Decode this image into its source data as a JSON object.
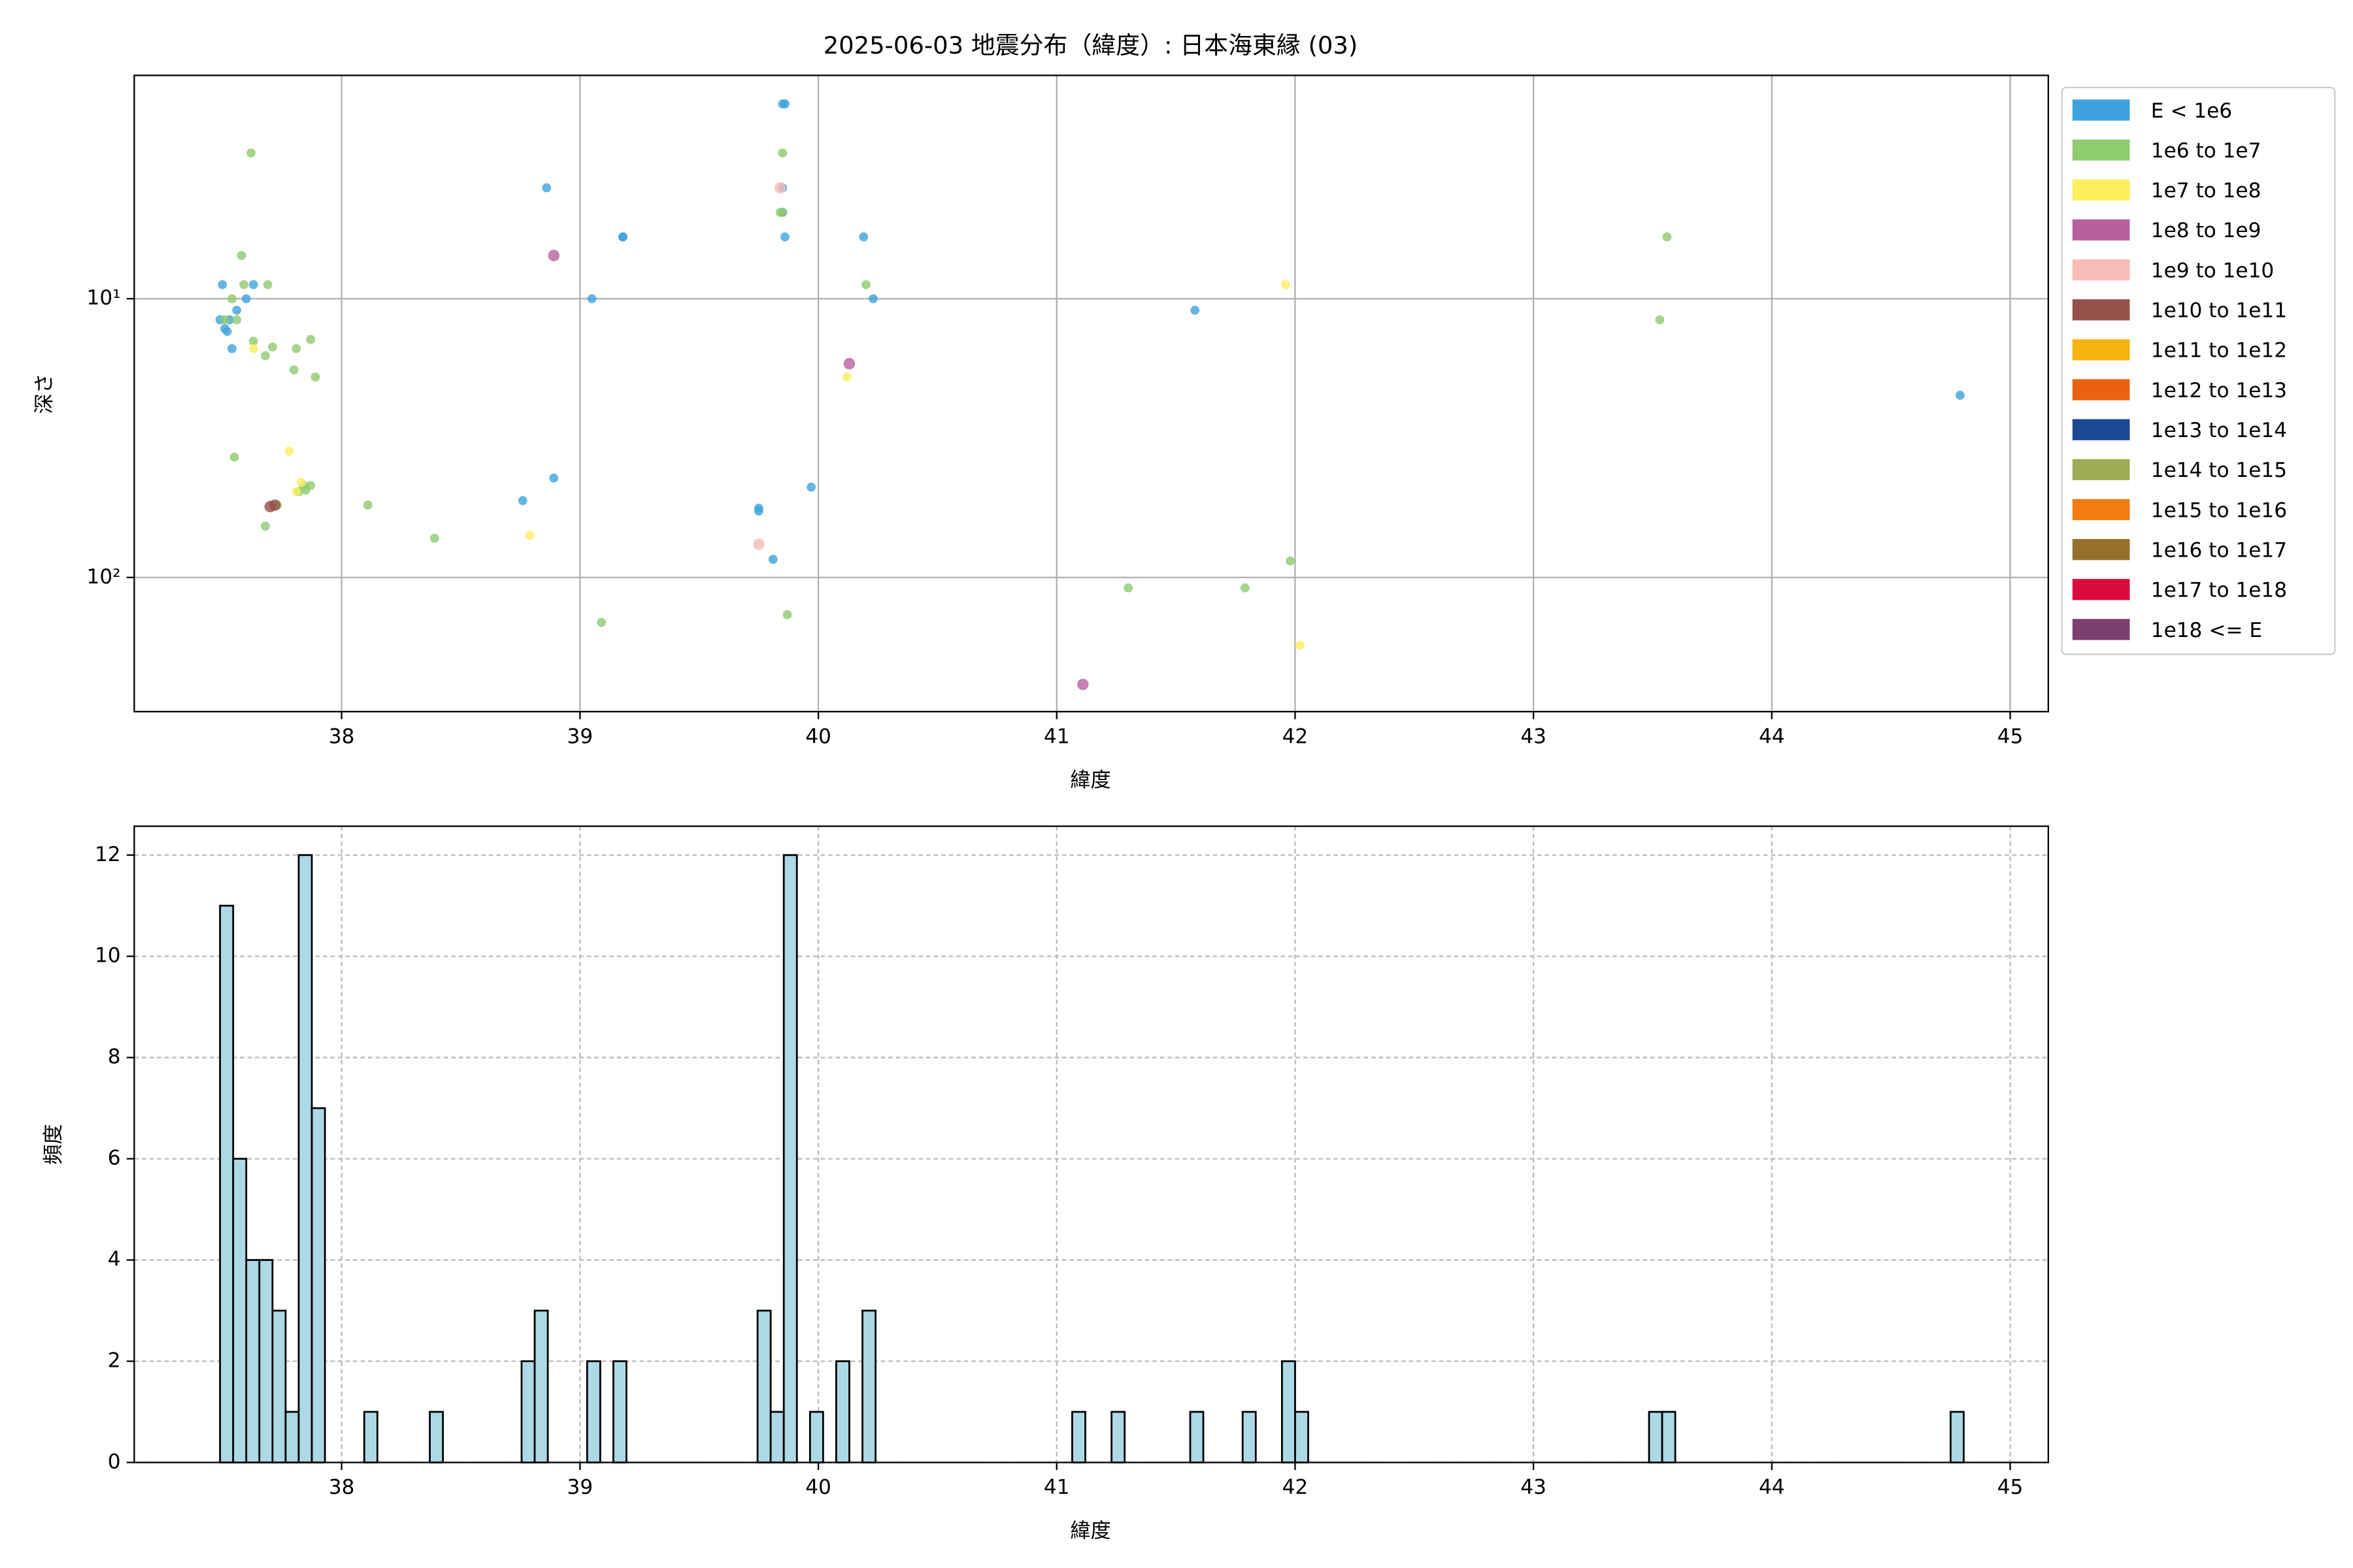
{
  "chart_data": [
    {
      "type": "scatter",
      "title": "2025-06-03 地震分布（緯度）: 日本海東縁 (03)",
      "x_label": "緯度",
      "y_label": "深さ",
      "xlim": [
        37.13,
        45.16
      ],
      "ylim": [
        1.58,
        303
      ],
      "y_inverted": true,
      "yscale": "log",
      "grid": true,
      "legend": "outside-right",
      "xticks": [
        38,
        39,
        40,
        41,
        42,
        43,
        44,
        45
      ],
      "yticks": [
        {
          "value": 10,
          "label": "10¹"
        },
        {
          "value": 100,
          "label": "10²"
        }
      ],
      "series": [
        {
          "name": "E < 1e6",
          "color": "#3ea3dc",
          "x": [
            37.5,
            37.49,
            37.51,
            37.53,
            37.56,
            37.6,
            37.63,
            37.52,
            37.54,
            38.86,
            39.05,
            39.18,
            39.18,
            39.85,
            39.86,
            39.85,
            39.85,
            39.86,
            38.76,
            38.89,
            39.75,
            39.75,
            39.81,
            39.97,
            40.19,
            40.23,
            41.58,
            44.79
          ],
          "values": [
            8.9,
            11.9,
            12.8,
            11.9,
            11.0,
            10,
            8.9,
            13.1,
            15.1,
            4.0,
            10,
            6.0,
            6.0,
            2.0,
            2.0,
            4.0,
            4.9,
            6.0,
            53.0,
            44.0,
            56.4,
            57.8,
            86.1,
            47.4,
            6.0,
            10,
            11.0,
            22.2
          ]
        },
        {
          "name": "1e6 to 1e7",
          "color": "#8fcb6f",
          "x": [
            37.62,
            37.58,
            37.59,
            37.69,
            37.54,
            37.51,
            37.56,
            37.63,
            37.71,
            37.68,
            37.87,
            37.81,
            37.8,
            37.89,
            37.55,
            37.68,
            38.11,
            38.39,
            39.85,
            39.84,
            39.85,
            40.2,
            43.56,
            43.53,
            39.09,
            39.87,
            41.3,
            41.79,
            41.98,
            37.84,
            37.85,
            37.87,
            37.82,
            37.73
          ],
          "values": [
            3.0,
            7.0,
            8.9,
            8.9,
            10,
            11.9,
            11.9,
            14.2,
            14.9,
            16.0,
            14.0,
            15.1,
            18.0,
            19.1,
            37.0,
            65.5,
            55.0,
            72.3,
            3.0,
            4.9,
            4.9,
            8.9,
            6.0,
            11.9,
            145,
            136,
            109,
            109,
            87.3,
            46.8,
            48.6,
            46.8,
            49.2,
            55.0
          ]
        },
        {
          "name": "1e7 to 1e8",
          "color": "#fdee5e",
          "x": [
            37.63,
            37.78,
            37.83,
            38.79,
            40.12,
            41.96,
            42.02,
            37.81
          ],
          "values": [
            15.1,
            35.2,
            45.6,
            70.6,
            19.1,
            8.9,
            175,
            49.2
          ]
        },
        {
          "name": "1e8 to 1e9",
          "color": "#b8609d",
          "x": [
            38.89,
            40.13,
            41.11
          ],
          "values": [
            7.0,
            17.1,
            242
          ]
        },
        {
          "name": "1e9 to 1e10",
          "color": "#f6bcb5",
          "x": [
            39.84,
            39.75
          ],
          "values": [
            4.0,
            76.0
          ]
        },
        {
          "name": "1e10 to 1e11",
          "color": "#96504a",
          "x": [
            37.7,
            37.72
          ],
          "values": [
            55.7,
            55.0
          ]
        },
        {
          "name": "1e11 to 1e12",
          "color": "#f8b30f",
          "x": [],
          "values": []
        },
        {
          "name": "1e12 to 1e13",
          "color": "#ea6210",
          "x": [],
          "values": []
        },
        {
          "name": "1e13 to 1e14",
          "color": "#1c4893",
          "x": [],
          "values": []
        },
        {
          "name": "1e14 to 1e15",
          "color": "#9dae56",
          "x": [],
          "values": []
        },
        {
          "name": "1e15 to 1e16",
          "color": "#f27b12",
          "x": [],
          "values": []
        },
        {
          "name": "1e16 to 1e17",
          "color": "#97702c",
          "x": [],
          "values": []
        },
        {
          "name": "1e17 to 1e18",
          "color": "#db0c3c",
          "x": [],
          "values": []
        },
        {
          "name": "1e18 <= E",
          "color": "#7c3e6e",
          "x": [],
          "values": []
        }
      ]
    },
    {
      "type": "histogram",
      "x_label": "緯度",
      "y_label": "頻度",
      "color": "#add8e6",
      "edgecolor": "#000000",
      "grid": true,
      "xlim": [
        37.13,
        45.16
      ],
      "ylim": [
        0,
        12.57
      ],
      "xticks": [
        38,
        39,
        40,
        41,
        42,
        43,
        44,
        45
      ],
      "yticks": [
        0,
        2,
        4,
        6,
        8,
        10,
        12
      ],
      "bins": [
        37.49,
        37.545,
        37.6,
        37.655,
        37.71,
        37.765,
        37.82,
        37.875,
        37.93,
        37.985,
        38.04,
        38.095,
        38.15,
        38.205,
        38.26,
        38.315,
        38.37,
        38.425,
        38.48,
        38.535,
        38.59,
        38.645,
        38.7,
        38.755,
        38.81,
        38.865,
        38.92,
        38.975,
        39.03,
        39.085,
        39.14,
        39.195,
        39.25,
        39.305,
        39.36,
        39.415,
        39.47,
        39.525,
        39.58,
        39.635,
        39.69,
        39.745,
        39.8,
        39.855,
        39.91,
        39.965,
        40.02,
        40.075,
        40.13,
        40.185,
        40.24,
        40.295,
        40.35,
        40.405,
        40.46,
        40.515,
        40.57,
        40.625,
        40.68,
        40.735,
        40.79,
        40.845,
        40.9,
        40.955,
        41.01,
        41.065,
        41.12,
        41.175,
        41.23,
        41.285,
        41.34,
        41.395,
        41.45,
        41.505,
        41.56,
        41.615,
        41.67,
        41.725,
        41.78,
        41.835,
        41.89,
        41.945,
        42.0,
        42.055,
        42.11,
        42.165,
        42.22,
        42.275,
        42.33,
        42.385,
        42.44,
        42.495,
        42.55,
        42.605,
        42.66,
        42.715,
        42.77,
        42.825,
        42.88,
        42.935,
        42.99,
        43.045,
        43.1,
        43.155,
        43.21,
        43.265,
        43.32,
        43.375,
        43.43,
        43.485,
        43.54,
        43.595,
        43.65,
        43.705,
        43.76,
        43.815,
        43.87,
        43.925,
        43.98,
        44.035,
        44.09,
        44.145,
        44.2,
        44.255,
        44.31,
        44.365,
        44.42,
        44.475,
        44.53,
        44.585,
        44.64,
        44.695,
        44.75,
        44.805
      ],
      "values": [
        11,
        6,
        4,
        4,
        3,
        1,
        12,
        7,
        0,
        0,
        0,
        1,
        0,
        0,
        0,
        0,
        1,
        0,
        0,
        0,
        0,
        0,
        0,
        2,
        3,
        0,
        0,
        0,
        2,
        0,
        2,
        0,
        0,
        0,
        0,
        0,
        0,
        0,
        0,
        0,
        0,
        3,
        1,
        12,
        0,
        1,
        0,
        2,
        0,
        3,
        0,
        0,
        0,
        0,
        0,
        0,
        0,
        0,
        0,
        0,
        0,
        0,
        0,
        0,
        0,
        1,
        0,
        0,
        1,
        0,
        0,
        0,
        0,
        0,
        1,
        0,
        0,
        0,
        1,
        0,
        0,
        2,
        1,
        0,
        0,
        0,
        0,
        0,
        0,
        0,
        0,
        0,
        0,
        0,
        0,
        0,
        0,
        0,
        0,
        0,
        0,
        0,
        0,
        0,
        0,
        0,
        0,
        0,
        0,
        1,
        1,
        0,
        0,
        0,
        0,
        0,
        0,
        0,
        0,
        0,
        0,
        0,
        0,
        0,
        0,
        0,
        0,
        0,
        0,
        0,
        0,
        0,
        1
      ]
    }
  ]
}
